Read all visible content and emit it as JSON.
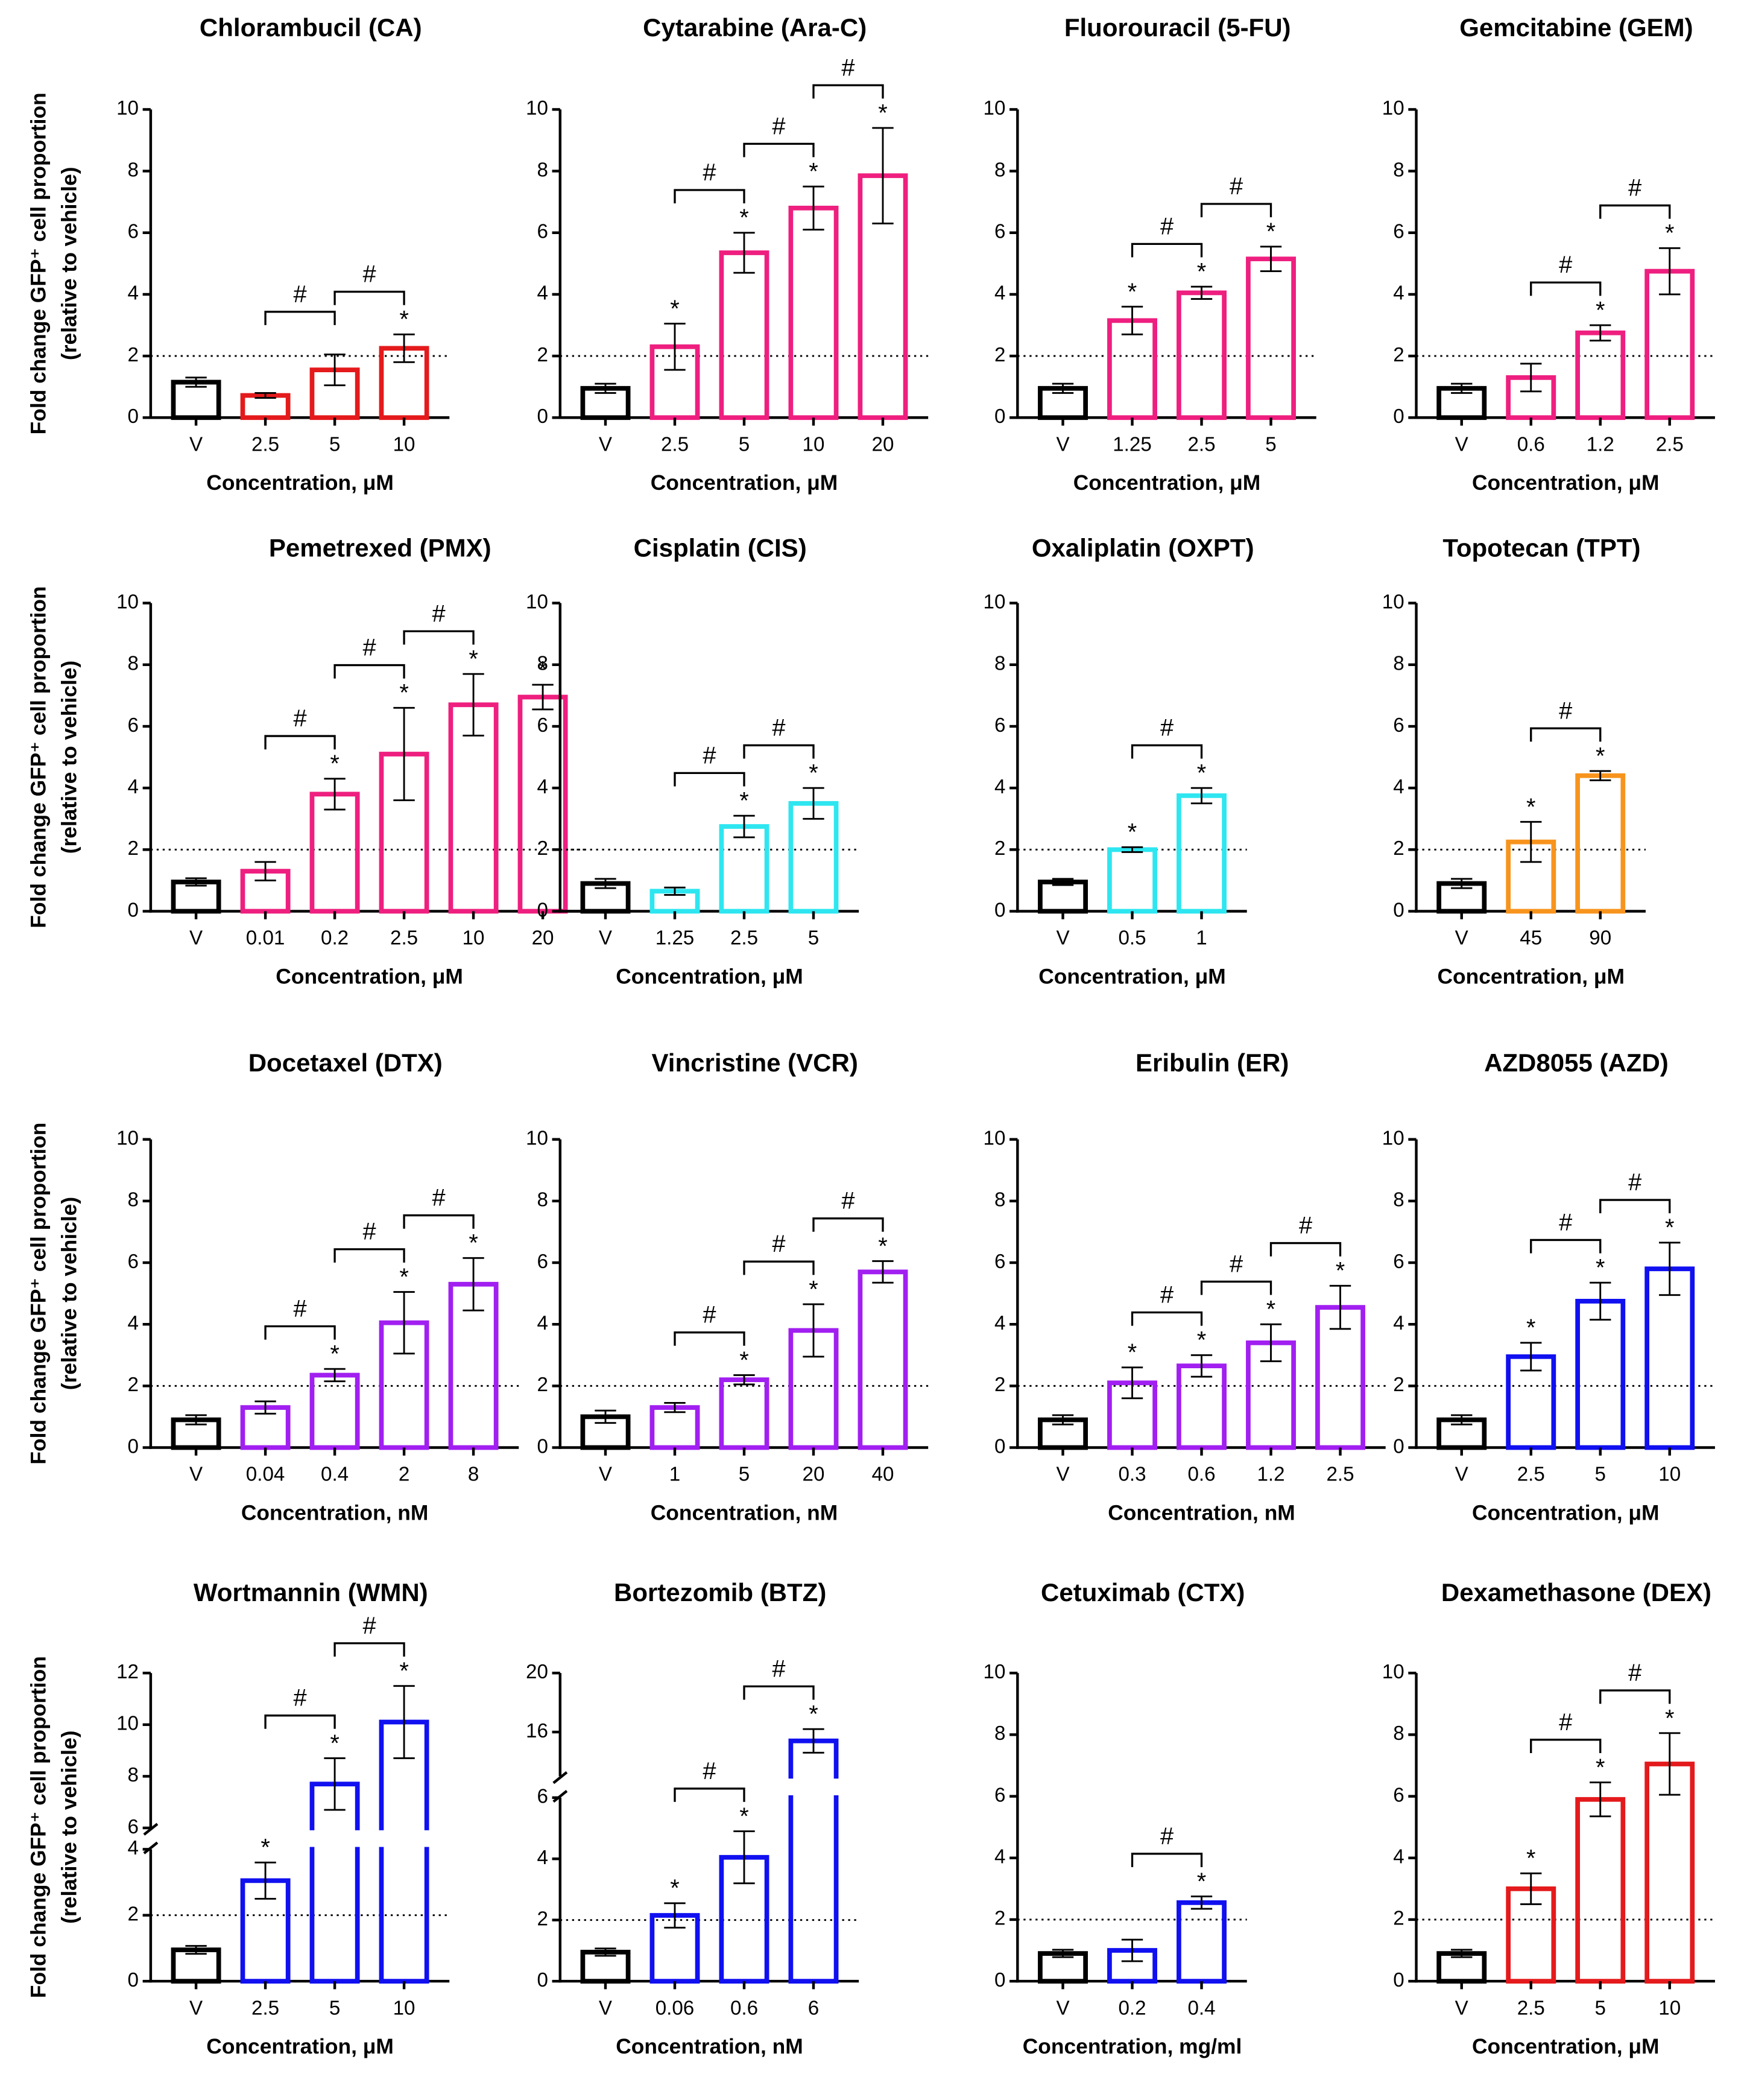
{
  "chart_data": [
    {
      "type": "bar",
      "title": "Chlorambucil (CA)",
      "ylabel": [
        "Fold change GFP⁺ cell proportion",
        "(relative to vehicle)"
      ],
      "xlabel": "Concentration, μM",
      "categories": [
        "V",
        "2.5",
        "5",
        "10"
      ],
      "values": [
        1.15,
        0.72,
        1.55,
        2.25
      ],
      "errors": [
        0.15,
        0.08,
        0.5,
        0.45
      ],
      "colors": [
        "#000000",
        "#e41a1c",
        "#e41a1c",
        "#e41a1c"
      ],
      "significance": [
        null,
        null,
        null,
        "*"
      ],
      "brackets": [
        {
          "from": 1,
          "to": 2,
          "label": "#"
        },
        {
          "from": 2,
          "to": 3,
          "label": "#"
        }
      ],
      "ylim": [
        0,
        10
      ],
      "yticks": [
        0,
        2,
        4,
        6,
        8,
        10
      ],
      "reference_line": 2
    },
    {
      "type": "bar",
      "title": "Cytarabine (Ara-C)",
      "xlabel": "Concentration, μM",
      "categories": [
        "V",
        "2.5",
        "5",
        "10",
        "20"
      ],
      "values": [
        0.95,
        2.3,
        5.35,
        6.8,
        7.85
      ],
      "errors": [
        0.15,
        0.75,
        0.65,
        0.7,
        1.55
      ],
      "colors": [
        "#000000",
        "#ee1f7f",
        "#ee1f7f",
        "#ee1f7f",
        "#ee1f7f"
      ],
      "significance": [
        null,
        "*",
        "*",
        "*",
        "*"
      ],
      "brackets": [
        {
          "from": 1,
          "to": 2,
          "label": "#"
        },
        {
          "from": 2,
          "to": 3,
          "label": "#"
        },
        {
          "from": 3,
          "to": 4,
          "label": "#"
        }
      ],
      "ylim": [
        0,
        10
      ],
      "yticks": [
        0,
        2,
        4,
        6,
        8,
        10
      ],
      "reference_line": 2
    },
    {
      "type": "bar",
      "title": "Fluorouracil (5-FU)",
      "xlabel": "Concentration, μM",
      "categories": [
        "V",
        "1.25",
        "2.5",
        "5"
      ],
      "values": [
        0.95,
        3.15,
        4.05,
        5.15
      ],
      "errors": [
        0.15,
        0.45,
        0.2,
        0.4
      ],
      "colors": [
        "#000000",
        "#ee1f7f",
        "#ee1f7f",
        "#ee1f7f"
      ],
      "significance": [
        null,
        "*",
        "*",
        "*"
      ],
      "brackets": [
        {
          "from": 1,
          "to": 2,
          "label": "#"
        },
        {
          "from": 2,
          "to": 3,
          "label": "#"
        }
      ],
      "ylim": [
        0,
        10
      ],
      "yticks": [
        0,
        2,
        4,
        6,
        8,
        10
      ],
      "reference_line": 2
    },
    {
      "type": "bar",
      "title": "Gemcitabine (GEM)",
      "xlabel": "Concentration, μM",
      "categories": [
        "V",
        "0.6",
        "1.2",
        "2.5"
      ],
      "values": [
        0.95,
        1.3,
        2.75,
        4.75
      ],
      "errors": [
        0.15,
        0.45,
        0.25,
        0.75
      ],
      "colors": [
        "#000000",
        "#ee1f7f",
        "#ee1f7f",
        "#ee1f7f"
      ],
      "significance": [
        null,
        null,
        "*",
        "*"
      ],
      "brackets": [
        {
          "from": 1,
          "to": 2,
          "label": "#"
        },
        {
          "from": 2,
          "to": 3,
          "label": "#"
        }
      ],
      "ylim": [
        0,
        10
      ],
      "yticks": [
        0,
        2,
        4,
        6,
        8,
        10
      ],
      "reference_line": 2
    },
    {
      "type": "bar",
      "title": "Pemetrexed (PMX)",
      "ylabel": [
        "Fold change GFP⁺ cell proportion",
        "(relative to vehicle)"
      ],
      "xlabel": "Concentration, μM",
      "categories": [
        "V",
        "0.01",
        "0.2",
        "2.5",
        "10",
        "20"
      ],
      "values": [
        0.95,
        1.3,
        3.8,
        5.1,
        6.7,
        6.95
      ],
      "errors": [
        0.12,
        0.3,
        0.5,
        1.5,
        1.0,
        0.4
      ],
      "colors": [
        "#000000",
        "#ee1f7f",
        "#ee1f7f",
        "#ee1f7f",
        "#ee1f7f",
        "#ee1f7f"
      ],
      "significance": [
        null,
        null,
        "*",
        "*",
        "*",
        "*"
      ],
      "brackets": [
        {
          "from": 1,
          "to": 2,
          "label": "#"
        },
        {
          "from": 2,
          "to": 3,
          "label": "#"
        },
        {
          "from": 3,
          "to": 4,
          "label": "#"
        }
      ],
      "ylim": [
        0,
        10
      ],
      "yticks": [
        0,
        2,
        4,
        6,
        8,
        10
      ],
      "reference_line": 2
    },
    {
      "type": "bar",
      "title": "Cisplatin (CIS)",
      "xlabel": "Concentration, μM",
      "categories": [
        "V",
        "1.25",
        "2.5",
        "5"
      ],
      "values": [
        0.9,
        0.65,
        2.75,
        3.5
      ],
      "errors": [
        0.15,
        0.12,
        0.35,
        0.5
      ],
      "colors": [
        "#000000",
        "#2ee6f0",
        "#2ee6f0",
        "#2ee6f0"
      ],
      "significance": [
        null,
        null,
        "*",
        "*"
      ],
      "brackets": [
        {
          "from": 1,
          "to": 2,
          "label": "#"
        },
        {
          "from": 2,
          "to": 3,
          "label": "#"
        }
      ],
      "ylim": [
        0,
        10
      ],
      "yticks": [
        0,
        2,
        4,
        6,
        8,
        10
      ],
      "reference_line": 2
    },
    {
      "type": "bar",
      "title": "Oxaliplatin (OXPT)",
      "xlabel": "Concentration, μM",
      "categories": [
        "V",
        "0.5",
        "1"
      ],
      "values": [
        0.95,
        2.0,
        3.75
      ],
      "errors": [
        0.1,
        0.08,
        0.25
      ],
      "colors": [
        "#000000",
        "#2ee6f0",
        "#2ee6f0"
      ],
      "significance": [
        null,
        "*",
        "*"
      ],
      "brackets": [
        {
          "from": 1,
          "to": 2,
          "label": "#"
        }
      ],
      "ylim": [
        0,
        10
      ],
      "yticks": [
        0,
        2,
        4,
        6,
        8,
        10
      ],
      "reference_line": 2
    },
    {
      "type": "bar",
      "title": "Topotecan (TPT)",
      "xlabel": "Concentration, μM",
      "categories": [
        "V",
        "45",
        "90"
      ],
      "values": [
        0.9,
        2.25,
        4.4
      ],
      "errors": [
        0.15,
        0.65,
        0.15
      ],
      "colors": [
        "#000000",
        "#f7941d",
        "#f7941d"
      ],
      "significance": [
        null,
        "*",
        "*"
      ],
      "brackets": [
        {
          "from": 1,
          "to": 2,
          "label": "#"
        }
      ],
      "ylim": [
        0,
        10
      ],
      "yticks": [
        0,
        2,
        4,
        6,
        8,
        10
      ],
      "reference_line": 2
    },
    {
      "type": "bar",
      "title": "Docetaxel (DTX)",
      "ylabel": [
        "Fold change GFP⁺ cell proportion",
        "(relative to vehicle)"
      ],
      "xlabel": "Concentration, nM",
      "categories": [
        "V",
        "0.04",
        "0.4",
        "2",
        "8"
      ],
      "values": [
        0.9,
        1.3,
        2.35,
        4.05,
        5.3
      ],
      "errors": [
        0.15,
        0.2,
        0.2,
        1.0,
        0.85
      ],
      "colors": [
        "#000000",
        "#a11ff0",
        "#a11ff0",
        "#a11ff0",
        "#a11ff0"
      ],
      "significance": [
        null,
        null,
        "*",
        "*",
        "*"
      ],
      "brackets": [
        {
          "from": 1,
          "to": 2,
          "label": "#"
        },
        {
          "from": 2,
          "to": 3,
          "label": "#"
        },
        {
          "from": 3,
          "to": 4,
          "label": "#"
        }
      ],
      "ylim": [
        0,
        10
      ],
      "yticks": [
        0,
        2,
        4,
        6,
        8,
        10
      ],
      "reference_line": 2
    },
    {
      "type": "bar",
      "title": "Vincristine (VCR)",
      "xlabel": "Concentration, nM",
      "categories": [
        "V",
        "1",
        "5",
        "20",
        "40"
      ],
      "values": [
        1.0,
        1.3,
        2.2,
        3.8,
        5.7
      ],
      "errors": [
        0.2,
        0.15,
        0.15,
        0.85,
        0.35
      ],
      "colors": [
        "#000000",
        "#a11ff0",
        "#a11ff0",
        "#a11ff0",
        "#a11ff0"
      ],
      "significance": [
        null,
        null,
        "*",
        "*",
        "*"
      ],
      "brackets": [
        {
          "from": 1,
          "to": 2,
          "label": "#"
        },
        {
          "from": 2,
          "to": 3,
          "label": "#"
        },
        {
          "from": 3,
          "to": 4,
          "label": "#"
        }
      ],
      "ylim": [
        0,
        10
      ],
      "yticks": [
        0,
        2,
        4,
        6,
        8,
        10
      ],
      "reference_line": 2
    },
    {
      "type": "bar",
      "title": "Eribulin (ER)",
      "xlabel": "Concentration, nM",
      "categories": [
        "V",
        "0.3",
        "0.6",
        "1.2",
        "2.5"
      ],
      "values": [
        0.9,
        2.1,
        2.65,
        3.4,
        4.55
      ],
      "errors": [
        0.15,
        0.5,
        0.35,
        0.6,
        0.7
      ],
      "colors": [
        "#000000",
        "#a11ff0",
        "#a11ff0",
        "#a11ff0",
        "#a11ff0"
      ],
      "significance": [
        null,
        "*",
        "*",
        "*",
        "*"
      ],
      "brackets": [
        {
          "from": 1,
          "to": 2,
          "label": "#"
        },
        {
          "from": 2,
          "to": 3,
          "label": "#"
        },
        {
          "from": 3,
          "to": 4,
          "label": "#"
        }
      ],
      "ylim": [
        0,
        10
      ],
      "yticks": [
        0,
        2,
        4,
        6,
        8,
        10
      ],
      "reference_line": 2
    },
    {
      "type": "bar",
      "title": "AZD8055 (AZD)",
      "xlabel": "Concentration, μM",
      "categories": [
        "V",
        "2.5",
        "5",
        "10"
      ],
      "values": [
        0.9,
        2.95,
        4.75,
        5.8
      ],
      "errors": [
        0.15,
        0.45,
        0.6,
        0.85
      ],
      "colors": [
        "#000000",
        "#1010f0",
        "#1010f0",
        "#1010f0"
      ],
      "significance": [
        null,
        "*",
        "*",
        "*"
      ],
      "brackets": [
        {
          "from": 1,
          "to": 2,
          "label": "#"
        },
        {
          "from": 2,
          "to": 3,
          "label": "#"
        }
      ],
      "ylim": [
        0,
        10
      ],
      "yticks": [
        0,
        2,
        4,
        6,
        8,
        10
      ],
      "reference_line": 2
    },
    {
      "type": "bar",
      "title": "Wortmannin (WMN)",
      "ylabel": [
        "Fold change GFP⁺ cell proportion",
        "(relative to vehicle)"
      ],
      "xlabel": "Concentration, μM",
      "categories": [
        "V",
        "2.5",
        "5",
        "10"
      ],
      "values": [
        0.95,
        3.05,
        7.7,
        10.1
      ],
      "errors": [
        0.12,
        0.55,
        1.0,
        1.4
      ],
      "colors": [
        "#000000",
        "#1010f0",
        "#1010f0",
        "#1010f0"
      ],
      "significance": [
        null,
        "*",
        "*",
        "*"
      ],
      "brackets": [
        {
          "from": 1,
          "to": 2,
          "label": "#"
        },
        {
          "from": 2,
          "to": 3,
          "label": "#"
        }
      ],
      "segments": [
        {
          "ylim": [
            0,
            4
          ],
          "yticks": [
            0,
            2,
            4
          ]
        },
        {
          "ylim": [
            6,
            12
          ],
          "yticks": [
            6,
            8,
            10,
            12
          ]
        }
      ],
      "reference_line": 2
    },
    {
      "type": "bar",
      "title": "Bortezomib (BTZ)",
      "xlabel": "Concentration, nM",
      "categories": [
        "V",
        "0.06",
        "0.6",
        "6"
      ],
      "values": [
        0.95,
        2.15,
        4.05,
        15.4
      ],
      "errors": [
        0.12,
        0.4,
        0.85,
        0.8
      ],
      "colors": [
        "#000000",
        "#1010f0",
        "#1010f0",
        "#1010f0"
      ],
      "significance": [
        null,
        "*",
        "*",
        "*"
      ],
      "brackets": [
        {
          "from": 1,
          "to": 2,
          "label": "#"
        },
        {
          "from": 2,
          "to": 3,
          "label": "#"
        }
      ],
      "segments": [
        {
          "ylim": [
            0,
            6
          ],
          "yticks": [
            0,
            2,
            4,
            6
          ]
        },
        {
          "ylim": [
            13,
            20
          ],
          "yticks": [
            16,
            20
          ]
        }
      ],
      "reference_line": 2
    },
    {
      "type": "bar",
      "title": "Cetuximab (CTX)",
      "xlabel": "Concentration, mg/ml",
      "categories": [
        "V",
        "0.2",
        "0.4"
      ],
      "values": [
        0.9,
        1.0,
        2.55
      ],
      "errors": [
        0.12,
        0.35,
        0.2
      ],
      "colors": [
        "#000000",
        "#1010f0",
        "#1010f0"
      ],
      "significance": [
        null,
        null,
        "*"
      ],
      "brackets": [
        {
          "from": 1,
          "to": 2,
          "label": "#"
        }
      ],
      "ylim": [
        0,
        10
      ],
      "yticks": [
        0,
        2,
        4,
        6,
        8,
        10
      ],
      "reference_line": 2
    },
    {
      "type": "bar",
      "title": "Dexamethasone (DEX)",
      "xlabel": "Concentration, μM",
      "categories": [
        "V",
        "2.5",
        "5",
        "10"
      ],
      "values": [
        0.9,
        3.0,
        5.9,
        7.05
      ],
      "errors": [
        0.12,
        0.5,
        0.55,
        1.0
      ],
      "colors": [
        "#000000",
        "#e41a1c",
        "#e41a1c",
        "#e41a1c"
      ],
      "significance": [
        null,
        "*",
        "*",
        "*"
      ],
      "brackets": [
        {
          "from": 1,
          "to": 2,
          "label": "#"
        },
        {
          "from": 2,
          "to": 3,
          "label": "#"
        }
      ],
      "ylim": [
        0,
        10
      ],
      "yticks": [
        0,
        2,
        4,
        6,
        8,
        10
      ],
      "reference_line": 2
    }
  ]
}
